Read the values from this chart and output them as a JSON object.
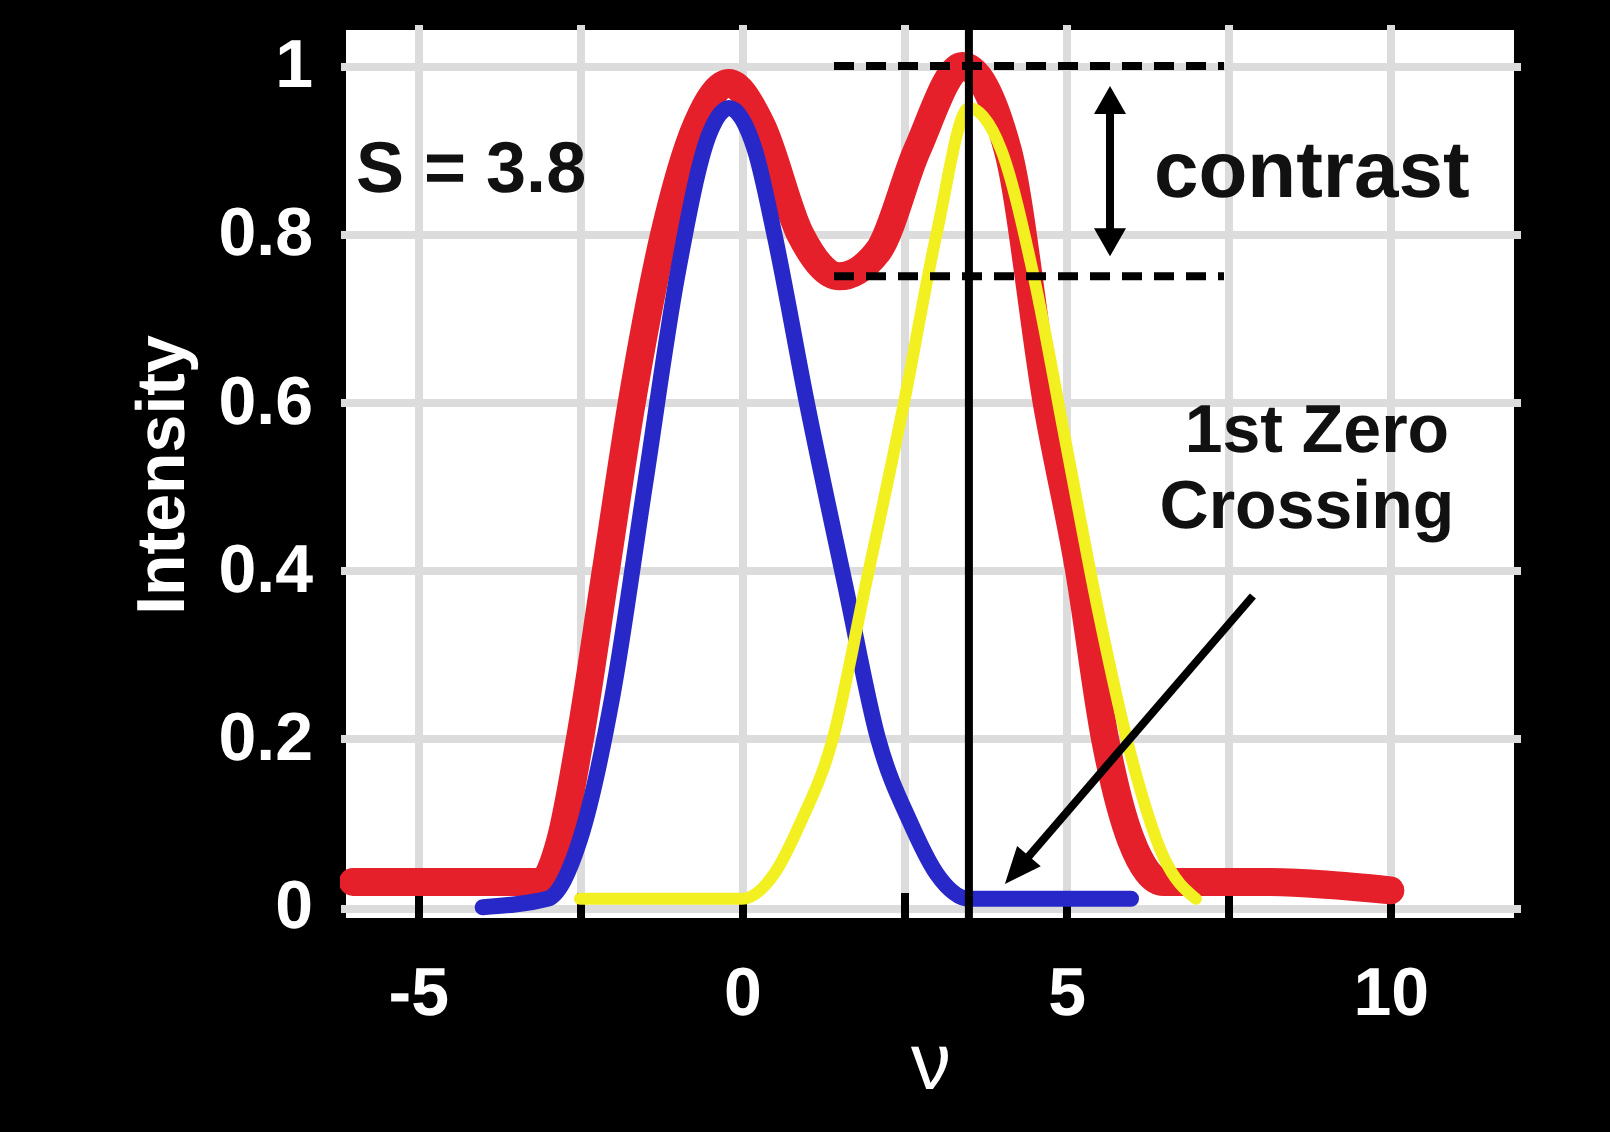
{
  "chart_data": {
    "type": "line",
    "xlabel": "ν",
    "ylabel": "Intensity",
    "xlim": [
      -6.2,
      12
    ],
    "ylim": [
      -0.02,
      1.05
    ],
    "xticks": [
      -5,
      {
        "value": -2.5,
        "label": null
      },
      0,
      {
        "value": 2.5,
        "label": null
      },
      5,
      {
        "value": 7.5,
        "label": null
      },
      10
    ],
    "yticks": [
      0,
      0.2,
      0.4,
      0.6,
      0.8,
      1
    ],
    "grid": true,
    "line_style": "solid",
    "series": [
      {
        "color": "#e5202a",
        "x": [
          -6,
          -4,
          -3.1,
          -2.8,
          -2.5,
          -2.1,
          -1.7,
          -1.2,
          -0.7,
          -0.2,
          0.3,
          0.9,
          1.5,
          2.1,
          2.7,
          3.4,
          4.1,
          4.7,
          5.2,
          5.6,
          6.0,
          6.5,
          8,
          10
        ],
        "values": [
          0.03,
          0.03,
          0.03,
          0.08,
          0.2,
          0.4,
          0.6,
          0.8,
          0.93,
          0.98,
          0.93,
          0.8,
          0.75,
          0.78,
          0.9,
          1.0,
          0.9,
          0.6,
          0.4,
          0.2,
          0.08,
          0.03,
          0.03,
          0.02
        ]
      },
      {
        "color": "#2828c8",
        "x": [
          -4,
          -3,
          -2.5,
          -2,
          -1.5,
          -1,
          -0.5,
          -0.2,
          0.2,
          0.5,
          1.0,
          1.6,
          2.1,
          2.6,
          3.0,
          3.5,
          4.5,
          6
        ],
        "values": [
          0,
          0.01,
          0.08,
          0.25,
          0.5,
          0.75,
          0.92,
          0.95,
          0.9,
          0.8,
          0.6,
          0.38,
          0.2,
          0.1,
          0.04,
          0.01,
          0.01,
          0.01
        ]
      },
      {
        "color": "#f2f020",
        "x": [
          -2.5,
          0,
          0.5,
          0.9,
          1.4,
          1.9,
          2.5,
          3.0,
          3.5,
          4,
          4.5,
          5,
          5.5,
          6,
          6.5,
          7
        ],
        "values": [
          0.01,
          0.01,
          0.04,
          0.1,
          0.2,
          0.38,
          0.6,
          0.8,
          0.95,
          0.9,
          0.75,
          0.55,
          0.35,
          0.18,
          0.06,
          0.01
        ]
      }
    ],
    "ref_lines": [
      {
        "axis": "x",
        "value": 3.5,
        "color": "#000000"
      },
      {
        "axis": "y",
        "value": 1.0,
        "color": "#000000",
        "line_style": "dashed"
      },
      {
        "axis": "y",
        "value": 0.75,
        "color": "#000000",
        "line_style": "dashed"
      }
    ],
    "annotations": [
      "S = 3.8",
      "contrast",
      "1st Zero Crossing"
    ]
  }
}
